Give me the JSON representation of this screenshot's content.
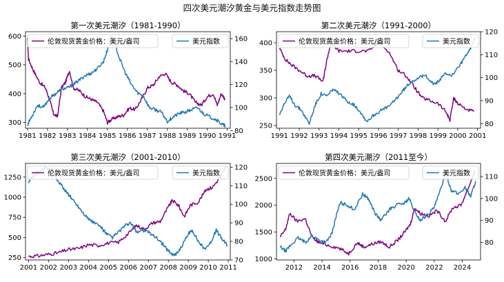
{
  "figure": {
    "title": "四次美元潮汐黄金与美元指数走势图"
  },
  "colors": {
    "gold": "#800080",
    "dxy": "#1f77b4",
    "axis": "#000000"
  },
  "chart_data": [
    {
      "type": "line",
      "title": "第一次美元潮汐（1981-1990）",
      "legend_left": "伦敦现货黄金价格：美元/盎司",
      "legend_right": "美元指数",
      "xlim": [
        1980.9,
        1991.15
      ],
      "xticks": [
        1981,
        1982,
        1983,
        1984,
        1985,
        1986,
        1987,
        1988,
        1989,
        1990,
        1991
      ],
      "xtick_labels": [
        "1981",
        "1982",
        "1983",
        "1984",
        "1985",
        "1986",
        "1987",
        "1988",
        "1989",
        "1990",
        "1991"
      ],
      "y_left": {
        "lim": [
          280,
          615
        ],
        "ticks": [
          300,
          400,
          500,
          600
        ]
      },
      "y_right": {
        "lim": [
          82,
          166
        ],
        "ticks": [
          80,
          100,
          120,
          140,
          160
        ]
      },
      "gold": {
        "x": [
          1981.0,
          1981.05,
          1981.3,
          1981.6,
          1981.9,
          1982.1,
          1982.3,
          1982.5,
          1982.7,
          1982.9,
          1983.1,
          1983.3,
          1983.6,
          1983.9,
          1984.2,
          1984.5,
          1984.8,
          1985.0,
          1985.2,
          1985.5,
          1985.8,
          1986.1,
          1986.4,
          1986.7,
          1987.0,
          1987.3,
          1987.6,
          1987.9,
          1988.2,
          1988.5,
          1988.8,
          1989.1,
          1989.4,
          1989.7,
          1990.0,
          1990.3,
          1990.5,
          1990.7,
          1990.9
        ],
        "y": [
          590,
          520,
          480,
          440,
          420,
          380,
          330,
          320,
          420,
          440,
          480,
          420,
          410,
          390,
          380,
          370,
          340,
          300,
          310,
          320,
          325,
          350,
          345,
          380,
          420,
          430,
          460,
          470,
          440,
          430,
          410,
          400,
          370,
          360,
          390,
          400,
          360,
          400,
          380
        ]
      },
      "dxy": {
        "x": [
          1981.0,
          1981.2,
          1981.5,
          1981.8,
          1982.1,
          1982.4,
          1982.7,
          1983.0,
          1983.3,
          1983.6,
          1983.9,
          1984.2,
          1984.5,
          1984.8,
          1985.0,
          1985.15,
          1985.3,
          1985.6,
          1985.9,
          1986.2,
          1986.5,
          1986.8,
          1987.1,
          1987.4,
          1987.7,
          1988.0,
          1988.3,
          1988.6,
          1988.9,
          1989.2,
          1989.5,
          1989.8,
          1990.1,
          1990.4,
          1990.7,
          1990.9
        ],
        "y": [
          85,
          92,
          102,
          100,
          108,
          112,
          116,
          117,
          120,
          124,
          128,
          130,
          134,
          140,
          150,
          162,
          160,
          143,
          130,
          120,
          113,
          110,
          100,
          98,
          96,
          88,
          92,
          95,
          96,
          98,
          100,
          95,
          92,
          90,
          86,
          84
        ]
      }
    },
    {
      "type": "line",
      "title": "第二次美元潮汐（1991-2000）",
      "legend_left": "伦敦现货黄金价格：美元/盎司",
      "legend_right": "美元指数",
      "xlim": [
        1990.85,
        2001.15
      ],
      "xticks": [
        1991,
        1992,
        1993,
        1994,
        1995,
        1996,
        1997,
        1998,
        1999,
        2000,
        2001
      ],
      "xtick_labels": [
        "1991",
        "1992",
        "1993",
        "1994",
        "1995",
        "1996",
        "1997",
        "1998",
        "1999",
        "2000",
        "2001"
      ],
      "y_left": {
        "lim": [
          245,
          420
        ],
        "ticks": [
          250,
          300,
          350,
          400
        ]
      },
      "y_right": {
        "lim": [
          78,
          120
        ],
        "ticks": [
          80,
          90,
          100,
          110,
          120
        ]
      },
      "gold": {
        "x": [
          1991.0,
          1991.3,
          1991.6,
          1992.0,
          1992.4,
          1992.8,
          1993.2,
          1993.4,
          1993.6,
          1994.0,
          1994.5,
          1995.0,
          1995.5,
          1996.0,
          1996.5,
          1997.0,
          1997.4,
          1997.8,
          1998.2,
          1998.6,
          1999.0,
          1999.4,
          1999.6,
          1999.8,
          2000.0,
          2000.4,
          2000.8
        ],
        "y": [
          390,
          370,
          360,
          350,
          340,
          340,
          330,
          370,
          400,
          385,
          385,
          385,
          385,
          400,
          385,
          350,
          340,
          320,
          300,
          295,
          290,
          275,
          260,
          300,
          290,
          280,
          275
        ]
      },
      "dxy": {
        "x": [
          1991.0,
          1991.2,
          1991.5,
          1991.8,
          1992.1,
          1992.5,
          1992.8,
          1993.1,
          1993.4,
          1993.7,
          1994.0,
          1994.4,
          1994.8,
          1995.1,
          1995.4,
          1995.8,
          1996.2,
          1996.6,
          1997.0,
          1997.3,
          1997.6,
          1998.0,
          1998.4,
          1998.8,
          1999.1,
          1999.4,
          1999.7,
          2000.0,
          2000.3,
          2000.6,
          2000.9
        ],
        "y": [
          84,
          88,
          92,
          88,
          86,
          80,
          88,
          93,
          92,
          95,
          93,
          90,
          88,
          85,
          81,
          84,
          86,
          88,
          92,
          95,
          98,
          100,
          101,
          97,
          99,
          102,
          101,
          104,
          108,
          112,
          118
        ]
      }
    },
    {
      "type": "line",
      "title": "第三次美元潮汐（2001-2010）",
      "legend_left": "伦敦现货黄金价格：美元/盎司",
      "legend_right": "美元指数",
      "xlim": [
        2000.85,
        2011.1
      ],
      "xticks": [
        2001,
        2002,
        2003,
        2004,
        2005,
        2006,
        2007,
        2008,
        2009,
        2010,
        2011
      ],
      "xtick_labels": [
        "2001",
        "2002",
        "2003",
        "2004",
        "2005",
        "2006",
        "2007",
        "2008",
        "2009",
        "2010",
        "2011"
      ],
      "y_left": {
        "lim": [
          220,
          1420
        ],
        "ticks": [
          250,
          500,
          750,
          1000,
          1250
        ]
      },
      "y_right": {
        "lim": [
          70,
          122
        ],
        "ticks": [
          70,
          80,
          90,
          100,
          110,
          120
        ]
      },
      "gold": {
        "x": [
          2001.0,
          2001.5,
          2002.0,
          2002.5,
          2003.0,
          2003.5,
          2004.0,
          2004.5,
          2005.0,
          2005.5,
          2006.0,
          2006.4,
          2006.8,
          2007.2,
          2007.6,
          2008.0,
          2008.2,
          2008.5,
          2008.8,
          2009.1,
          2009.5,
          2009.9,
          2010.2,
          2010.6,
          2010.9
        ],
        "y": [
          265,
          270,
          290,
          310,
          350,
          360,
          410,
          400,
          430,
          440,
          550,
          650,
          600,
          680,
          700,
          880,
          960,
          900,
          760,
          900,
          940,
          1100,
          1120,
          1250,
          1380
        ]
      },
      "dxy": {
        "x": [
          2001.0,
          2001.3,
          2001.6,
          2001.9,
          2002.2,
          2002.5,
          2002.8,
          2003.1,
          2003.4,
          2003.7,
          2004.0,
          2004.3,
          2004.6,
          2004.9,
          2005.2,
          2005.5,
          2005.8,
          2006.1,
          2006.4,
          2006.7,
          2007.0,
          2007.3,
          2007.6,
          2007.9,
          2008.2,
          2008.4,
          2008.7,
          2009.0,
          2009.2,
          2009.5,
          2009.8,
          2010.1,
          2010.4,
          2010.7,
          2010.95
        ],
        "y": [
          112,
          116,
          118,
          120,
          118,
          112,
          108,
          104,
          100,
          96,
          92,
          90,
          88,
          84,
          82,
          85,
          88,
          90,
          85,
          86,
          85,
          83,
          80,
          76,
          73,
          73,
          78,
          84,
          86,
          80,
          76,
          79,
          86,
          81,
          78
        ]
      }
    },
    {
      "type": "line",
      "title": "第四次美元潮汐（2011至今）",
      "legend_left": "伦敦现货黄金价格：美元/盎司",
      "legend_right": "美元指数",
      "xlim": [
        2010.75,
        2025.3
      ],
      "xticks": [
        2012,
        2014,
        2016,
        2018,
        2020,
        2022,
        2024
      ],
      "xtick_labels": [
        "2012",
        "2014",
        "2016",
        "2018",
        "2020",
        "2022",
        "2024"
      ],
      "y_left": {
        "lim": [
          980,
          2780
        ],
        "ticks": [
          1000,
          1500,
          2000,
          2500
        ]
      },
      "y_right": {
        "lim": [
          72,
          116
        ],
        "ticks": [
          80,
          90,
          100,
          110
        ]
      },
      "gold": {
        "x": [
          2011.0,
          2011.4,
          2011.7,
          2012.2,
          2012.8,
          2013.3,
          2013.8,
          2014.5,
          2015.2,
          2015.9,
          2016.5,
          2017.0,
          2017.6,
          2018.2,
          2018.8,
          2019.4,
          2019.9,
          2020.3,
          2020.6,
          2021.0,
          2021.6,
          2022.2,
          2022.8,
          2023.3,
          2023.9,
          2024.4,
          2024.9
        ],
        "y": [
          1400,
          1550,
          1850,
          1700,
          1750,
          1400,
          1300,
          1250,
          1200,
          1100,
          1300,
          1220,
          1280,
          1320,
          1220,
          1350,
          1500,
          1650,
          1950,
          1850,
          1800,
          1900,
          1700,
          1950,
          2000,
          2300,
          2650
        ]
      },
      "dxy": {
        "x": [
          2011.0,
          2011.4,
          2011.8,
          2012.3,
          2012.8,
          2013.3,
          2013.8,
          2014.3,
          2014.7,
          2015.0,
          2015.3,
          2015.8,
          2016.3,
          2016.9,
          2017.3,
          2017.8,
          2018.2,
          2018.8,
          2019.3,
          2019.9,
          2020.2,
          2020.6,
          2021.0,
          2021.6,
          2022.0,
          2022.4,
          2022.8,
          2023.2,
          2023.7,
          2024.2,
          2024.6,
          2024.95
        ],
        "y": [
          78,
          76,
          79,
          82,
          80,
          83,
          81,
          80,
          84,
          92,
          98,
          97,
          95,
          102,
          100,
          93,
          90,
          95,
          97,
          98,
          100,
          94,
          90,
          93,
          96,
          103,
          112,
          104,
          102,
          105,
          101,
          108
        ]
      }
    }
  ]
}
